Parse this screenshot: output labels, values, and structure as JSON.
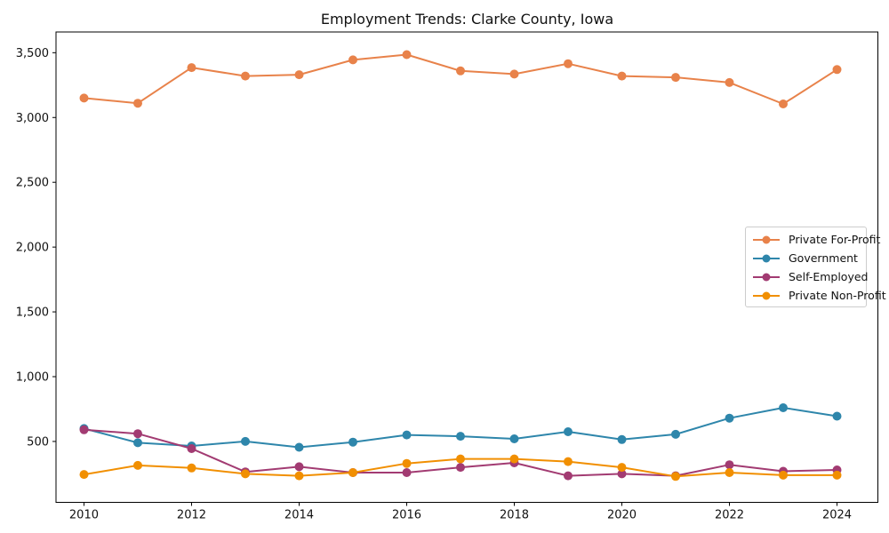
{
  "chart_data": {
    "type": "line",
    "title": "Employment Trends: Clarke County, Iowa",
    "x": [
      2010,
      2011,
      2012,
      2013,
      2014,
      2015,
      2016,
      2017,
      2018,
      2019,
      2020,
      2021,
      2022,
      2023,
      2024
    ],
    "series": [
      {
        "name": "Private For-Profit",
        "color": "#E8824A",
        "values": [
          3150,
          3110,
          3385,
          3320,
          3330,
          3445,
          3485,
          3360,
          3335,
          3415,
          3320,
          3310,
          3270,
          3105,
          3370
        ]
      },
      {
        "name": "Government",
        "color": "#2E86AB",
        "values": [
          600,
          490,
          465,
          500,
          455,
          495,
          550,
          540,
          520,
          575,
          515,
          555,
          680,
          760,
          695
        ]
      },
      {
        "name": "Self-Employed",
        "color": "#A23B72",
        "values": [
          590,
          560,
          445,
          265,
          305,
          260,
          260,
          300,
          335,
          235,
          250,
          235,
          320,
          270,
          280
        ]
      },
      {
        "name": "Private Non-Profit",
        "color": "#F18F01",
        "values": [
          245,
          315,
          295,
          250,
          235,
          260,
          330,
          365,
          365,
          345,
          300,
          230,
          260,
          240,
          240
        ]
      }
    ],
    "xticks": [
      2010,
      2012,
      2014,
      2016,
      2018,
      2020,
      2022,
      2024
    ],
    "xtick_labels": [
      "2010",
      "2012",
      "2014",
      "2016",
      "2018",
      "2020",
      "2022",
      "2024"
    ],
    "yticks": [
      500,
      1000,
      1500,
      2000,
      2500,
      3000,
      3500
    ],
    "ytick_labels": [
      "500",
      "1,000",
      "1,500",
      "2,000",
      "2,500",
      "3,000",
      "3,500"
    ],
    "xlim": [
      2009.48,
      2024.76
    ],
    "ylim": [
      30,
      3660
    ],
    "xlabel": "",
    "ylabel": "",
    "grid": false,
    "legend_position": "center-right",
    "axis_color": "#111111",
    "spine_color": "#000000",
    "background": "#ffffff",
    "marker": "circle",
    "tick_font_size": 13,
    "title_font_size": 16
  }
}
